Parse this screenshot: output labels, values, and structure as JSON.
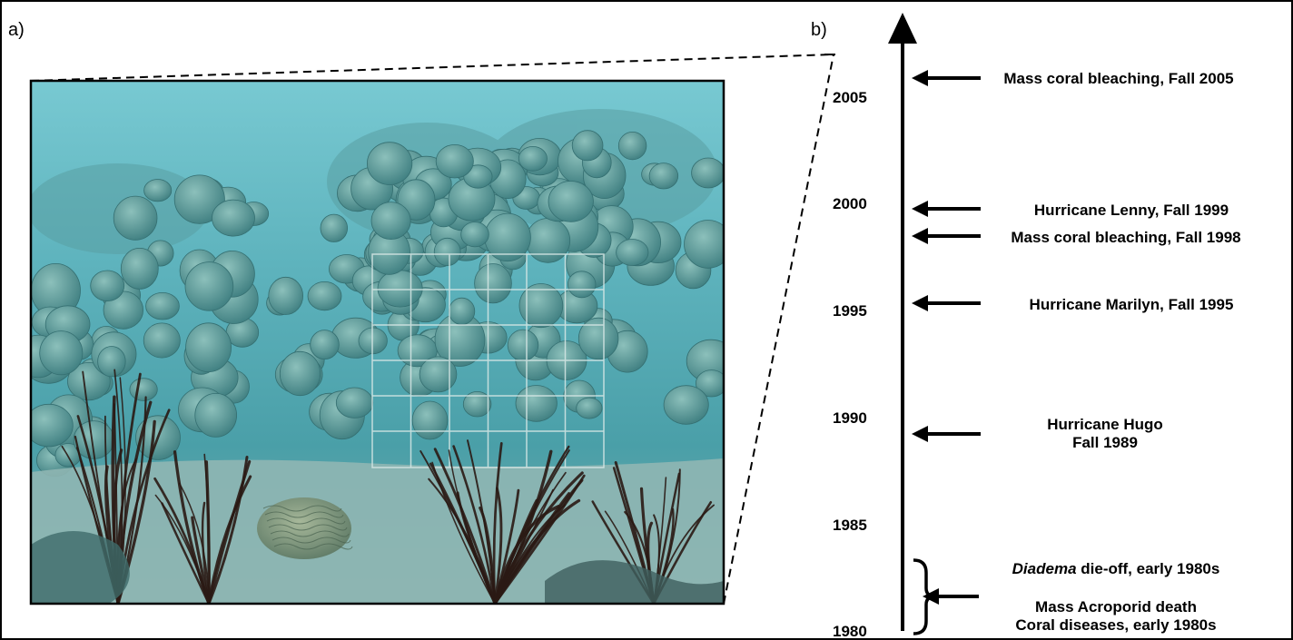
{
  "panels": {
    "a": "a)",
    "b": "b)"
  },
  "photo": {
    "subject": "underwater-coral-reef-photo",
    "colors": {
      "water_top": "#6fc2cc",
      "water_mid": "#4aa3ad",
      "coral": "#6fa9a4",
      "sand": "#8fb8b4",
      "sea_fan": "#2a1a14"
    }
  },
  "timeline": {
    "years": [
      "2005",
      "2000",
      "1995",
      "1990",
      "1985",
      "1980"
    ],
    "events": [
      {
        "id": "bleach2005",
        "lines": [
          "Mass coral bleaching, Fall 2005"
        ]
      },
      {
        "id": "lenny",
        "lines": [
          "Hurricane Lenny, Fall 1999"
        ]
      },
      {
        "id": "bleach1998",
        "lines": [
          "Mass coral bleaching, Fall 1998"
        ]
      },
      {
        "id": "marilyn",
        "lines": [
          "Hurricane Marilyn, Fall 1995"
        ]
      },
      {
        "id": "hugo",
        "lines": [
          "Hurricane Hugo",
          "Fall 1989"
        ]
      },
      {
        "id": "diadema",
        "italic": "Diadema",
        "rest": " die-off, early 1980s"
      },
      {
        "id": "acroporid",
        "lines": [
          "Mass Acroporid death",
          "Coral diseases, early 1980s"
        ]
      }
    ]
  }
}
